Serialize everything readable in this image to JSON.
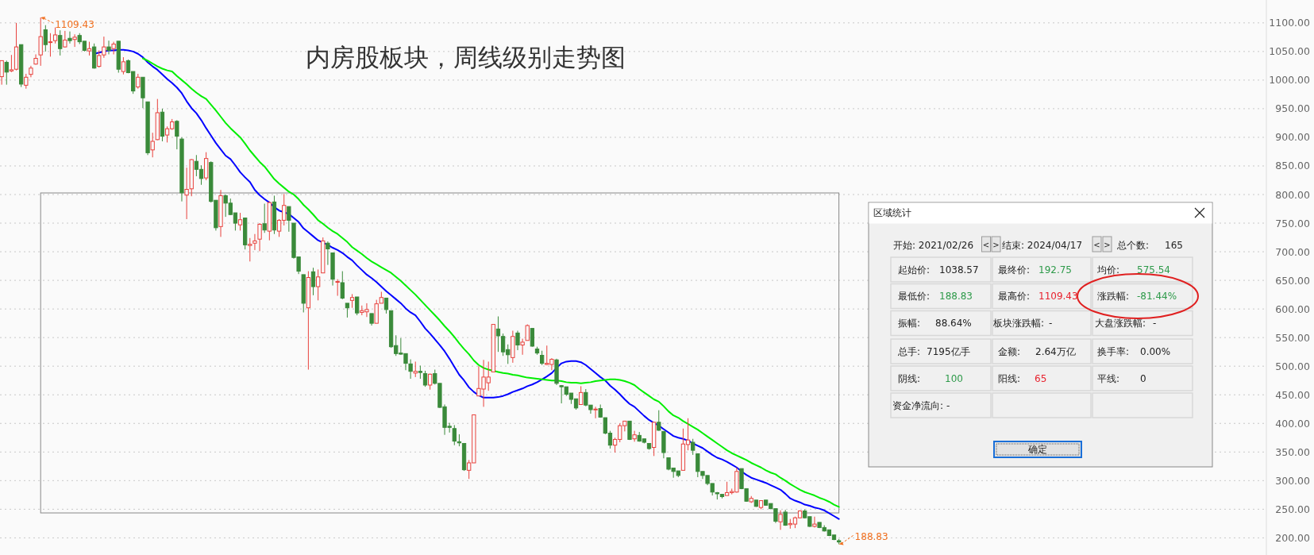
{
  "chart_data": {
    "type": "candlestick",
    "title": "内房股板块，周线级别走势图",
    "categories": [
      null,
      null,
      null,
      null,
      null,
      null,
      null,
      null,
      null,
      null,
      null,
      null,
      null,
      null,
      null,
      null,
      null,
      null,
      null,
      null,
      null,
      null,
      null,
      null,
      null,
      null,
      null,
      null,
      null,
      null,
      null,
      null,
      null,
      null,
      null,
      null,
      null,
      null,
      null,
      null,
      null,
      null,
      null,
      null,
      null,
      null,
      null,
      null,
      null,
      null,
      null,
      null,
      null,
      null,
      null,
      null,
      null,
      null,
      null,
      null,
      null,
      null,
      null,
      null,
      null,
      null,
      null,
      null,
      null,
      null,
      null,
      null,
      null,
      null,
      null,
      null,
      null,
      null,
      null,
      null,
      null,
      null,
      null,
      null,
      null,
      null,
      null,
      null,
      null,
      null,
      null,
      null,
      null,
      null,
      null,
      null,
      null,
      null,
      null,
      null,
      null,
      null,
      null,
      null,
      null,
      null,
      null,
      null,
      null,
      null,
      null,
      null,
      null,
      null,
      null,
      null,
      null,
      null,
      null,
      null,
      null,
      null,
      null,
      null,
      null,
      null,
      null,
      null,
      null,
      null,
      null,
      null,
      null,
      null,
      null,
      null,
      null,
      null,
      null,
      null,
      null,
      null,
      null,
      null,
      null,
      null,
      null,
      null,
      null,
      null,
      null,
      null,
      null,
      null,
      null,
      null,
      null,
      null,
      null,
      null,
      null,
      null,
      null,
      null,
      null,
      null,
      null,
      null,
      null,
      null,
      null,
      null,
      null
    ],
    "ohlc": [
      [
        1006,
        1034,
        992,
        1034
      ],
      [
        1031,
        1034,
        992,
        1014
      ],
      [
        1016,
        1044,
        1014,
        1018
      ],
      [
        1019,
        1100,
        1017,
        1058
      ],
      [
        1062,
        1062,
        988,
        993
      ],
      [
        991,
        1011,
        985,
        1005
      ],
      [
        1010,
        1025,
        1005,
        1021
      ],
      [
        1028,
        1045,
        1027,
        1038
      ],
      [
        1044,
        1109.43,
        1025,
        1076
      ],
      [
        1088,
        1096,
        1050,
        1062
      ],
      [
        1066,
        1082,
        1041,
        1067
      ],
      [
        1069,
        1092,
        1064,
        1079
      ],
      [
        1078,
        1087,
        1043,
        1055
      ],
      [
        1058,
        1086,
        1057,
        1070
      ],
      [
        1073,
        1085,
        1064,
        1069
      ],
      [
        1071,
        1080,
        1058,
        1075
      ],
      [
        1078,
        1082,
        1063,
        1067
      ],
      [
        1068,
        1068,
        1050,
        1052
      ],
      [
        1051,
        1067,
        1043,
        1055
      ],
      [
        1058,
        1064,
        1020,
        1021
      ],
      [
        1024,
        1052,
        1022,
        1043
      ],
      [
        1044,
        1076,
        1039,
        1058
      ],
      [
        1058,
        1069,
        1045,
        1052
      ],
      [
        1055,
        1067,
        1045,
        1063
      ],
      [
        1068,
        1068,
        1013,
        1019
      ],
      [
        1015,
        1040,
        1010,
        1032
      ],
      [
        1034,
        1036,
        1012,
        1013
      ],
      [
        1015,
        1015,
        976,
        981
      ],
      [
        988,
        1011,
        985,
        1005
      ],
      [
        1005,
        1005,
        951,
        969
      ],
      [
        962,
        962,
        869,
        873
      ],
      [
        878,
        908,
        865,
        893
      ],
      [
        896,
        967,
        895,
        943
      ],
      [
        944,
        950,
        893,
        902
      ],
      [
        904,
        919,
        891,
        915
      ],
      [
        915,
        932,
        913,
        927
      ],
      [
        928,
        930,
        879,
        902
      ],
      [
        897,
        900,
        788,
        803
      ],
      [
        799,
        847,
        757,
        809
      ],
      [
        810,
        862,
        797,
        861
      ],
      [
        858,
        869,
        832,
        844
      ],
      [
        844,
        851,
        817,
        828
      ],
      [
        829,
        874,
        825,
        863
      ],
      [
        856,
        858,
        786,
        788
      ],
      [
        790,
        790,
        737,
        742
      ],
      [
        744,
        808,
        726,
        798
      ],
      [
        798,
        800,
        761,
        785
      ],
      [
        785,
        793,
        764,
        765
      ],
      [
        768,
        768,
        737,
        750
      ],
      [
        747,
        768,
        737,
        756
      ],
      [
        759,
        759,
        704,
        712
      ],
      [
        711,
        724,
        683,
        713
      ],
      [
        715,
        731,
        703,
        719
      ],
      [
        722,
        750,
        701,
        748
      ],
      [
        749,
        784,
        733,
        738
      ],
      [
        736,
        788,
        720,
        786
      ],
      [
        787,
        798,
        731,
        738
      ],
      [
        736,
        757,
        726,
        755
      ],
      [
        755,
        801,
        746,
        781
      ],
      [
        779,
        779,
        735,
        755
      ],
      [
        750,
        750,
        688,
        690
      ],
      [
        691,
        691,
        661,
        666
      ],
      [
        660,
        660,
        594,
        610
      ],
      [
        602,
        666,
        494,
        655
      ],
      [
        665,
        672,
        624,
        639
      ],
      [
        639,
        669,
        615,
        656
      ],
      [
        663,
        725,
        663,
        719
      ],
      [
        715,
        718,
        677,
        705
      ],
      [
        698,
        698,
        641,
        652
      ],
      [
        647,
        652,
        623,
        648
      ],
      [
        646,
        666,
        617,
        619
      ],
      [
        610,
        610,
        585,
        602
      ],
      [
        615,
        626,
        602,
        620
      ],
      [
        621,
        621,
        589,
        593
      ],
      [
        594,
        606,
        589,
        597
      ],
      [
        595,
        610,
        586,
        599
      ],
      [
        592,
        592,
        571,
        575
      ],
      [
        575,
        616,
        575,
        609
      ],
      [
        610,
        630,
        610,
        620
      ],
      [
        619,
        619,
        592,
        599
      ],
      [
        597,
        597,
        532,
        534
      ],
      [
        536,
        554,
        518,
        522
      ],
      [
        523,
        549,
        520,
        521
      ],
      [
        522,
        522,
        493,
        505
      ],
      [
        504,
        512,
        478,
        491
      ],
      [
        488,
        508,
        481,
        491
      ],
      [
        491,
        501,
        478,
        489
      ],
      [
        487,
        492,
        464,
        467
      ],
      [
        467,
        487,
        459,
        486
      ],
      [
        487,
        494,
        468,
        470
      ],
      [
        470,
        470,
        427,
        428
      ],
      [
        429,
        433,
        380,
        393
      ],
      [
        395,
        401,
        384,
        393
      ],
      [
        391,
        397,
        362,
        369
      ],
      [
        368,
        381,
        360,
        366
      ],
      [
        365,
        365,
        317,
        319
      ],
      [
        318,
        336,
        303,
        331
      ],
      [
        331,
        415,
        331,
        415
      ],
      [
        448,
        500,
        448,
        461
      ],
      [
        460,
        511,
        429,
        481
      ],
      [
        471,
        508,
        457,
        481
      ],
      [
        490,
        573,
        490,
        573
      ],
      [
        565,
        587,
        525,
        553
      ],
      [
        552,
        557,
        518,
        525
      ],
      [
        529,
        538,
        504,
        520
      ],
      [
        515,
        562,
        506,
        552
      ],
      [
        558,
        562,
        528,
        537
      ],
      [
        537,
        548,
        520,
        542
      ],
      [
        545,
        573,
        545,
        571
      ],
      [
        566,
        566,
        534,
        535
      ],
      [
        530,
        534,
        520,
        523
      ],
      [
        519,
        527,
        502,
        505
      ],
      [
        503,
        536,
        502,
        505
      ],
      [
        503,
        514,
        493,
        512
      ],
      [
        511,
        513,
        467,
        470
      ],
      [
        466,
        467,
        435,
        464
      ],
      [
        464,
        464,
        448,
        451
      ],
      [
        453,
        453,
        434,
        442
      ],
      [
        443,
        443,
        424,
        427
      ],
      [
        433,
        465,
        433,
        454
      ],
      [
        454,
        460,
        430,
        432
      ],
      [
        432,
        432,
        417,
        424
      ],
      [
        424,
        429,
        409,
        425
      ],
      [
        426,
        433,
        410,
        411
      ],
      [
        410,
        410,
        381,
        383
      ],
      [
        383,
        387,
        356,
        362
      ],
      [
        362,
        375,
        349,
        372
      ],
      [
        372,
        400,
        367,
        396
      ],
      [
        396,
        404,
        386,
        404
      ],
      [
        404,
        404,
        371,
        372
      ],
      [
        373,
        387,
        368,
        380
      ],
      [
        379,
        385,
        368,
        369
      ],
      [
        373,
        373,
        365,
        367
      ],
      [
        365,
        365,
        354,
        356
      ],
      [
        358,
        402,
        343,
        402
      ],
      [
        402,
        423,
        387,
        388
      ],
      [
        386,
        386,
        339,
        349
      ],
      [
        340,
        340,
        318,
        320
      ],
      [
        322,
        322,
        305,
        316
      ],
      [
        317,
        317,
        306,
        309
      ],
      [
        318,
        391,
        318,
        364
      ],
      [
        363,
        409,
        353,
        371
      ],
      [
        367,
        373,
        345,
        353
      ],
      [
        347,
        347,
        306,
        316
      ],
      [
        316,
        316,
        303,
        309
      ],
      [
        309,
        309,
        292,
        295
      ],
      [
        295,
        295,
        274,
        280
      ],
      [
        279,
        280,
        267,
        277
      ],
      [
        276,
        276,
        269,
        272
      ],
      [
        274,
        298,
        274,
        279
      ],
      [
        279,
        286,
        276,
        281
      ],
      [
        280,
        323,
        279,
        316
      ],
      [
        321,
        321,
        285,
        286
      ],
      [
        286,
        286,
        263,
        264
      ],
      [
        263,
        273,
        261,
        269
      ],
      [
        266,
        266,
        254,
        255
      ],
      [
        253,
        265,
        250,
        265
      ],
      [
        266,
        266,
        256,
        257
      ],
      [
        260,
        260,
        250,
        251
      ],
      [
        251,
        251,
        226,
        229
      ],
      [
        228,
        248,
        214,
        241
      ],
      [
        245,
        249,
        221,
        222
      ],
      [
        223,
        233,
        216,
        225
      ],
      [
        224,
        237,
        217,
        235
      ],
      [
        235,
        248,
        234,
        247
      ],
      [
        247,
        250,
        234,
        235
      ],
      [
        237,
        237,
        219,
        220
      ],
      [
        220,
        237,
        218,
        224
      ],
      [
        227,
        227,
        217,
        218
      ],
      [
        218,
        222,
        211,
        212
      ],
      [
        214,
        214,
        203,
        204
      ],
      [
        205,
        205,
        196,
        197
      ],
      [
        195,
        198,
        188.83,
        192.75
      ]
    ],
    "series": [
      {
        "type": "line",
        "color": "#0000ff",
        "values": [
          null,
          null,
          null,
          null,
          null,
          null,
          null,
          null,
          null,
          null,
          null,
          null,
          null,
          null,
          null,
          null,
          null,
          null,
          null,
          1046,
          1048,
          1050,
          1052,
          1052,
          1053,
          1053,
          1052,
          1050,
          1046,
          1040,
          1031,
          1024,
          1018,
          1010,
          1002,
          995,
          987,
          977,
          963,
          951,
          942,
          930,
          916,
          903,
          890,
          879,
          868,
          862,
          851,
          839,
          830,
          822,
          808,
          799,
          792,
          786,
          778,
          772,
          769,
          766,
          759,
          752,
          741,
          734,
          727,
          720,
          716,
          712,
          707,
          703,
          698,
          691,
          685,
          676,
          668,
          660,
          654,
          647,
          639,
          631,
          624,
          617,
          610,
          601,
          594,
          589,
          578,
          566,
          557,
          547,
          537,
          526,
          513,
          499,
          485,
          475,
          463,
          455,
          449,
          445,
          445,
          445,
          446,
          448,
          451,
          455,
          458,
          461,
          465,
          468,
          472,
          477,
          482,
          488,
          497,
          505,
          508,
          509,
          509,
          507,
          502,
          495,
          488,
          481,
          475,
          466,
          459,
          451,
          442,
          434,
          429,
          421,
          413,
          406,
          401,
          396,
          390,
          384,
          378,
          375,
          373,
          370,
          365,
          361,
          357,
          351,
          345,
          340,
          337,
          333,
          328,
          323,
          316,
          310,
          305,
          302,
          299,
          296,
          292,
          288,
          284,
          277,
          269,
          265,
          262,
          258,
          256,
          253,
          251,
          248,
          243,
          238,
          233
        ]
      },
      {
        "type": "line",
        "color": "#00ee00",
        "values": [
          null,
          null,
          null,
          null,
          null,
          null,
          null,
          null,
          null,
          null,
          null,
          null,
          null,
          null,
          null,
          null,
          null,
          null,
          null,
          null,
          null,
          null,
          null,
          null,
          null,
          null,
          null,
          null,
          null,
          1038,
          1034,
          1029,
          1024,
          1020,
          1017,
          1015,
          1007,
          1000,
          993,
          985,
          978,
          972,
          967,
          957,
          947,
          936,
          925,
          916,
          908,
          900,
          889,
          877,
          867,
          857,
          849,
          838,
          827,
          819,
          812,
          805,
          800,
          792,
          782,
          774,
          765,
          755,
          749,
          742,
          736,
          731,
          724,
          717,
          708,
          702,
          696,
          689,
          683,
          678,
          673,
          668,
          663,
          656,
          649,
          641,
          633,
          625,
          616,
          607,
          598,
          589,
          580,
          570,
          561,
          551,
          540,
          530,
          521,
          510,
          502,
          497,
          494,
          492,
          490,
          488,
          487,
          485,
          484,
          482,
          480,
          479,
          478,
          477,
          476,
          475,
          475,
          474,
          472,
          471,
          471,
          470,
          471,
          472,
          474,
          475,
          476,
          477,
          477,
          476,
          474,
          471,
          467,
          460,
          454,
          448,
          442,
          438,
          430,
          421,
          414,
          410,
          404,
          399,
          394,
          389,
          383,
          377,
          371,
          365,
          359,
          353,
          348,
          344,
          340,
          336,
          331,
          327,
          323,
          318,
          314,
          311,
          305,
          300,
          294,
          289,
          284,
          280,
          277,
          274,
          270,
          267,
          263,
          258,
          254
        ]
      }
    ],
    "ylim": [
      170,
      1140
    ],
    "yticks": [
      {
        "value": 200,
        "label": "200.00"
      },
      {
        "value": 250,
        "label": "250.00"
      },
      {
        "value": 300,
        "label": "300.00"
      },
      {
        "value": 350,
        "label": "350.00"
      },
      {
        "value": 400,
        "label": "400.00"
      },
      {
        "value": 450,
        "label": "450.00"
      },
      {
        "value": 500,
        "label": "500.00"
      },
      {
        "value": 550,
        "label": "550.00"
      },
      {
        "value": 600,
        "label": "600.00"
      },
      {
        "value": 650,
        "label": "650.00"
      },
      {
        "value": 700,
        "label": "700.00"
      },
      {
        "value": 750,
        "label": "750.00"
      },
      {
        "value": 800,
        "label": "800.00"
      },
      {
        "value": 850,
        "label": "850.00"
      },
      {
        "value": 900,
        "label": "900.00"
      },
      {
        "value": 950,
        "label": "950.00"
      },
      {
        "value": 1000,
        "label": "1000.00"
      },
      {
        "value": 1050,
        "label": "1050.00"
      },
      {
        "value": 1100,
        "label": "1100.00"
      }
    ],
    "grid": "y",
    "annotations": [
      "1109.43",
      "188.83",
      "区域统计",
      "开始: 2021/02/26",
      "结束: 2024/04/17",
      "总个数:",
      "165",
      "起始价:",
      "1038.57",
      "最终价:",
      "192.75",
      "均价:",
      "575.54",
      "最低价:",
      "188.83",
      "最高价:",
      "1109.43",
      "涨跌幅:",
      "-81.44%",
      "振幅:",
      "88.64%",
      "板块涨跌幅:",
      "-",
      "大盘涨跌幅:",
      "-",
      "总手:",
      "7195亿手",
      "金额:",
      "2.64万亿",
      "换手率:",
      "0.00%",
      "阴线:",
      "100",
      "阳线:",
      "65",
      "平线:",
      "0",
      "资金净流向:",
      "-",
      "确定",
      "<",
      ">",
      "<",
      ">"
    ]
  }
}
